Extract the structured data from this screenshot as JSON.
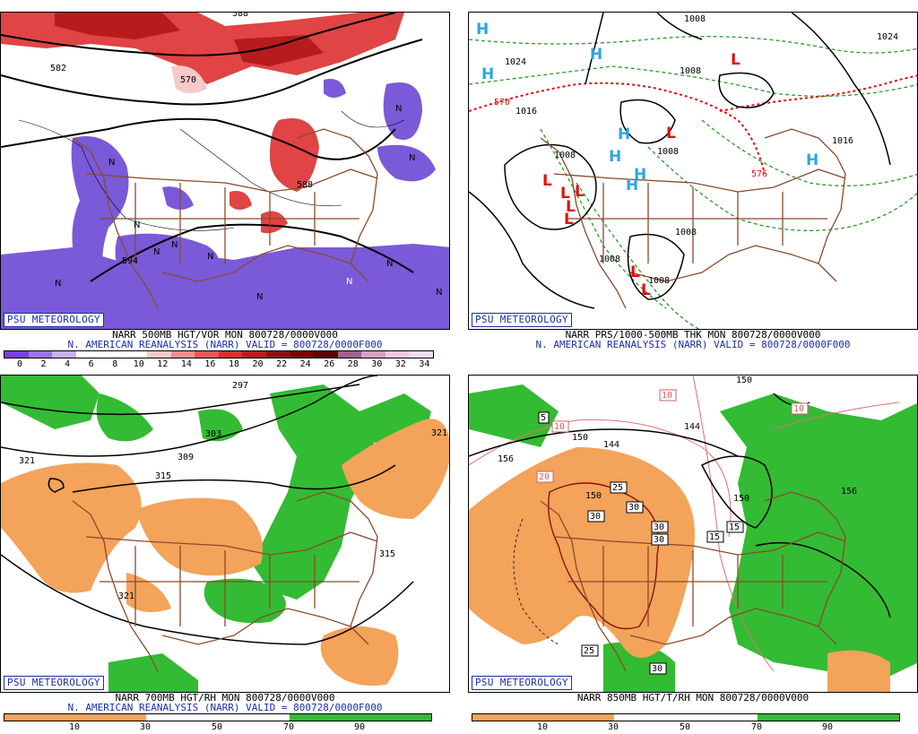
{
  "badge": "PSU METEOROLOGY",
  "colors": {
    "brown_borders": "#8b4a2b",
    "purple_low": "#7a5ad8",
    "red_high": "#e04444",
    "green_moist": "#33bb33",
    "orange_dry": "#f3a35a",
    "blue_H": "#2ea7dd",
    "red_L": "#e01010",
    "caption_blue": "#1a2fa8"
  },
  "panels": [
    {
      "id": "tl",
      "caption_line1": "NARR 500MB HGT/VOR MON 800728/0000V000",
      "caption_line2": "N. AMERICAN REANALYSIS (NARR) VALID = 800728/0000F000",
      "colorbar": [
        "#7a3fe0",
        "#9a74e8",
        "#c4b2f0",
        "#ffffff",
        "#ffffff",
        "#ffffff",
        "#f7c9c9",
        "#ef8f8f",
        "#e85757",
        "#d92f2f",
        "#b71c1c",
        "#8c0f0f",
        "#7a0000",
        "#5e0000",
        "#a06090",
        "#d8a0c0",
        "#f0c8dc",
        "#f8dcec"
      ],
      "ticks": [
        "0",
        "2",
        "4",
        "6",
        "8",
        "10",
        "12",
        "14",
        "16",
        "18",
        "20",
        "22",
        "24",
        "26",
        "28",
        "30",
        "32",
        "34"
      ],
      "labels": [
        "582",
        "570",
        "588",
        "588",
        "594"
      ],
      "markers": [
        "N",
        "N",
        "N",
        "N",
        "N",
        "N",
        "N",
        "N",
        "N",
        "N",
        "N",
        "N"
      ]
    },
    {
      "id": "tr",
      "caption_line1": "NARR PRS/1000-500MB THK MON 800728/0000V000",
      "caption_line2": "N. AMERICAN REANALYSIS (NARR) VALID = 800728/0000F000",
      "labels": [
        "1008",
        "1024",
        "1008",
        "1016",
        "1008",
        "1008",
        "1008",
        "1008",
        "1008",
        "570",
        "576",
        "1024",
        "1016"
      ],
      "highs": [
        "H",
        "H",
        "H",
        "H",
        "H",
        "H",
        "H",
        "H"
      ],
      "lows": [
        "L",
        "L",
        "L",
        "L",
        "L",
        "L",
        "L",
        "L",
        "L"
      ]
    },
    {
      "id": "bl",
      "caption_line1": "NARR 700MB HGT/RH MON 800728/0000V000",
      "caption_line2": "N. AMERICAN REANALYSIS (NARR) VALID = 800728/0000F000",
      "ticks": [
        "10",
        "30",
        "50",
        "70",
        "90"
      ],
      "labels": [
        "297",
        "303",
        "309",
        "315",
        "321",
        "321",
        "315",
        "321"
      ]
    },
    {
      "id": "br",
      "caption_line1": "NARR 850MB HGT/T/RH MON 800728/0000V000",
      "ticks": [
        "10",
        "30",
        "50",
        "70",
        "90"
      ],
      "labels": [
        "156",
        "150",
        "150",
        "144",
        "150",
        "144",
        "150",
        "156"
      ],
      "boxed_labels": [
        "10",
        "5",
        "10",
        "20",
        "25",
        "30",
        "30",
        "30",
        "30",
        "15",
        "25",
        "30",
        "10",
        "15"
      ]
    }
  ]
}
